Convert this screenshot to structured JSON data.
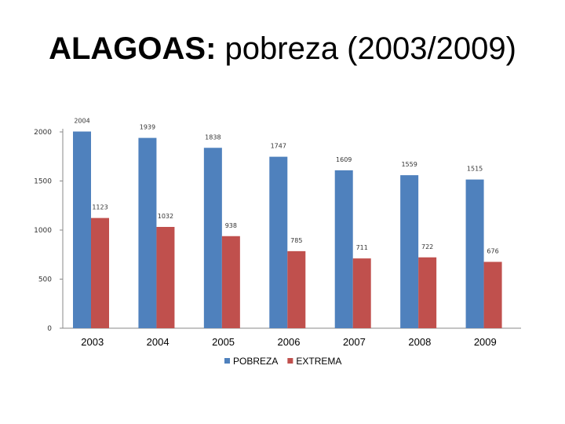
{
  "title": {
    "bold_part": "ALAGOAS:",
    "rest": " pobreza (2003/2009)"
  },
  "chart_data": {
    "type": "bar",
    "title": "ALAGOAS: pobreza (2003/2009)",
    "categories": [
      "2003",
      "2004",
      "2005",
      "2006",
      "2007",
      "2008",
      "2009"
    ],
    "series": [
      {
        "name": "POBREZA",
        "color": "#4f81bd",
        "values": [
          2004,
          1939,
          1838,
          1747,
          1609,
          1559,
          1515
        ]
      },
      {
        "name": "EXTREMA",
        "color": "#c0504d",
        "values": [
          1123,
          1032,
          938,
          785,
          711,
          722,
          676
        ]
      }
    ],
    "yticks": [
      "0",
      "500",
      "1000",
      "1500",
      "2000"
    ],
    "ylim": [
      0,
      2000
    ],
    "grid": false,
    "legend": "bottom"
  }
}
